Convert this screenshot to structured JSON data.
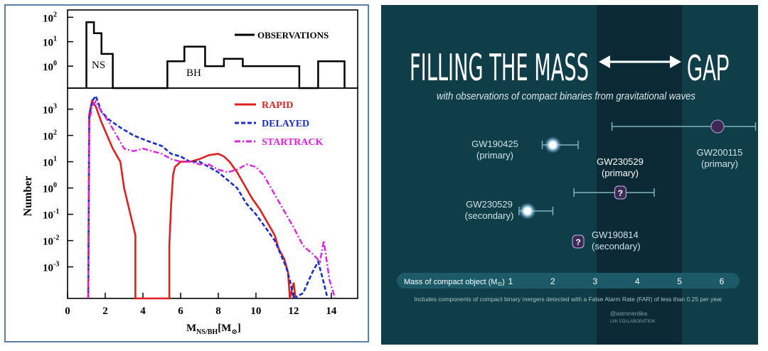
{
  "left": {
    "top_plot": {
      "legend_label": "OBSERVATIONS",
      "label_ns": "NS",
      "label_bh": "BH",
      "y_ticks": [
        {
          "base": "10",
          "exp": "2",
          "v": 2
        },
        {
          "base": "10",
          "exp": "1",
          "v": 1
        },
        {
          "base": "10",
          "exp": "0",
          "v": 0
        }
      ]
    },
    "main_plot": {
      "ylabel": "Number",
      "xlabel_main": "M",
      "xlabel_sub": "NS/BH",
      "xlabel_unit_open": "[M",
      "xlabel_unit_sym": "⊙",
      "xlabel_unit_close": "]",
      "x_ticks": [
        "0",
        "2",
        "4",
        "6",
        "8",
        "10",
        "12",
        "14"
      ],
      "y_ticks": [
        {
          "base": "10",
          "exp": "3",
          "v": 3
        },
        {
          "base": "10",
          "exp": "2",
          "v": 2
        },
        {
          "base": "10",
          "exp": "1",
          "v": 1
        },
        {
          "base": "10",
          "exp": "0",
          "v": 0
        },
        {
          "base": "10",
          "exp": "-1",
          "v": -1
        },
        {
          "base": "10",
          "exp": "-2",
          "v": -2
        },
        {
          "base": "10",
          "exp": "-3",
          "v": -3
        }
      ]
    }
  },
  "right": {
    "title_left": "FILLING THE MASS",
    "title_right": "GAP",
    "subtitle": "with observations of compact binaries from gravitational waves",
    "axis_label": "Mass of compact object (M",
    "axis_label_sym": "⊙",
    "axis_label_end": ")",
    "axis_ticks": [
      "1",
      "2",
      "3",
      "4",
      "5",
      "6"
    ],
    "footnote": "Includes components of compact binary mergers detected with a False Alarm Rate (FAR) of less than 0.25 per year",
    "credit_1": "@astronerdika",
    "credit_2": "LVK COLLABORATION",
    "events": [
      {
        "name": "GW190425",
        "role": "(primary)"
      },
      {
        "name": "GW230529",
        "role": "(primary)"
      },
      {
        "name": "GW200115",
        "role": "(primary)"
      },
      {
        "name": "GW230529",
        "role": "(secondary)"
      },
      {
        "name": "GW190814",
        "role": "(secondary)"
      }
    ],
    "question_mark": "?"
  },
  "chart_data": [
    {
      "type": "line",
      "title": "",
      "xlabel": "",
      "ylabel": "",
      "x_range": [
        0,
        15.4
      ],
      "log_y": true,
      "ylim_log10": [
        -0.9,
        2.3
      ],
      "series": [
        {
          "name": "OBSERVATIONS",
          "color": "#000000",
          "steps": [
            [
              1.0,
              -0.9
            ],
            [
              1.0,
              1.8
            ],
            [
              1.4,
              1.8
            ],
            [
              1.4,
              1.35
            ],
            [
              1.8,
              1.35
            ],
            [
              1.8,
              0.5
            ],
            [
              2.4,
              0.5
            ],
            [
              2.4,
              -0.9
            ],
            [
              5.3,
              -0.9
            ],
            [
              5.3,
              0.2
            ],
            [
              6.2,
              0.2
            ],
            [
              6.2,
              0.8
            ],
            [
              7.3,
              0.8
            ],
            [
              7.3,
              0.0
            ],
            [
              8.3,
              0.0
            ],
            [
              8.3,
              0.3
            ],
            [
              9.3,
              0.3
            ],
            [
              9.3,
              0.0
            ],
            [
              12.3,
              0.0
            ],
            [
              12.3,
              -0.9
            ],
            [
              13.3,
              -0.9
            ],
            [
              13.3,
              0.2
            ],
            [
              14.7,
              0.2
            ],
            [
              14.7,
              -0.9
            ]
          ]
        }
      ]
    },
    {
      "type": "line",
      "title": "",
      "xlabel": "M_NS/BH [M⊙]",
      "ylabel": "Number",
      "x_range": [
        0,
        15.4
      ],
      "log_y": true,
      "ylim_log10": [
        -4.2,
        3.8
      ],
      "series": [
        {
          "name": "RAPID",
          "color": "#e02020",
          "style": "solid",
          "points": [
            [
              1.1,
              -4.2
            ],
            [
              1.15,
              2.8
            ],
            [
              1.3,
              3.3
            ],
            [
              1.5,
              3.1
            ],
            [
              1.8,
              2.5
            ],
            [
              2.1,
              2.0
            ],
            [
              2.4,
              1.5
            ],
            [
              2.8,
              1.0
            ],
            [
              3.0,
              0.0
            ],
            [
              3.2,
              -0.6
            ],
            [
              3.4,
              -1.2
            ],
            [
              3.6,
              -1.8
            ],
            [
              3.6,
              -4.2
            ],
            [
              5.4,
              -4.2
            ],
            [
              5.4,
              -2.2
            ],
            [
              5.5,
              -0.6
            ],
            [
              5.6,
              0.5
            ],
            [
              5.7,
              0.8
            ],
            [
              6.0,
              1.0
            ],
            [
              6.5,
              1.0
            ],
            [
              7.0,
              1.1
            ],
            [
              7.5,
              1.25
            ],
            [
              8.0,
              1.3
            ],
            [
              8.3,
              1.2
            ],
            [
              8.6,
              1.0
            ],
            [
              9.0,
              0.6
            ],
            [
              9.4,
              0.1
            ],
            [
              9.8,
              -0.4
            ],
            [
              10.2,
              -0.8
            ],
            [
              10.6,
              -1.3
            ],
            [
              11.0,
              -1.8
            ],
            [
              11.2,
              -2.3
            ],
            [
              11.5,
              -2.7
            ],
            [
              11.7,
              -3.2
            ],
            [
              11.8,
              -4.2
            ],
            [
              12.0,
              -3.6
            ],
            [
              12.1,
              -4.2
            ]
          ]
        },
        {
          "name": "DELAYED",
          "color": "#1a2fc8",
          "style": "dashed",
          "points": [
            [
              1.1,
              -4.2
            ],
            [
              1.15,
              2.7
            ],
            [
              1.3,
              3.3
            ],
            [
              1.5,
              3.5
            ],
            [
              1.8,
              2.9
            ],
            [
              2.2,
              2.6
            ],
            [
              2.8,
              2.3
            ],
            [
              3.5,
              2.0
            ],
            [
              4.2,
              1.8
            ],
            [
              5.0,
              1.6
            ],
            [
              5.5,
              1.3
            ],
            [
              6.0,
              1.2
            ],
            [
              6.5,
              1.0
            ],
            [
              7.0,
              1.0
            ],
            [
              7.5,
              0.8
            ],
            [
              8.0,
              0.6
            ],
            [
              8.5,
              0.3
            ],
            [
              9.0,
              0.0
            ],
            [
              9.5,
              -0.6
            ],
            [
              10.0,
              -1.0
            ],
            [
              10.5,
              -1.5
            ],
            [
              11.0,
              -2.0
            ],
            [
              11.3,
              -2.5
            ],
            [
              11.6,
              -3.0
            ],
            [
              11.8,
              -3.5
            ],
            [
              12.0,
              -4.2
            ],
            [
              12.5,
              -4.0
            ],
            [
              13.0,
              -3.2
            ],
            [
              13.3,
              -2.8
            ],
            [
              13.6,
              -3.6
            ],
            [
              13.8,
              -4.2
            ]
          ]
        },
        {
          "name": "STARTRACK",
          "color": "#e020e0",
          "style": "dashdot",
          "points": [
            [
              1.1,
              -4.2
            ],
            [
              1.15,
              2.5
            ],
            [
              1.3,
              3.1
            ],
            [
              1.5,
              3.3
            ],
            [
              1.8,
              2.9
            ],
            [
              2.2,
              2.5
            ],
            [
              2.6,
              2.0
            ],
            [
              3.0,
              1.5
            ],
            [
              3.5,
              1.4
            ],
            [
              4.0,
              1.5
            ],
            [
              4.5,
              1.4
            ],
            [
              5.0,
              1.3
            ],
            [
              5.5,
              1.1
            ],
            [
              6.0,
              1.0
            ],
            [
              6.5,
              1.0
            ],
            [
              7.0,
              0.9
            ],
            [
              7.5,
              0.9
            ],
            [
              8.0,
              0.7
            ],
            [
              8.5,
              0.6
            ],
            [
              9.0,
              0.7
            ],
            [
              9.5,
              0.9
            ],
            [
              10.0,
              0.8
            ],
            [
              10.4,
              0.5
            ],
            [
              10.8,
              0.0
            ],
            [
              11.2,
              -0.5
            ],
            [
              11.6,
              -1.0
            ],
            [
              12.0,
              -1.5
            ],
            [
              12.5,
              -2.2
            ],
            [
              13.0,
              -2.5
            ],
            [
              13.4,
              -2.8
            ],
            [
              13.6,
              -2.0
            ],
            [
              13.9,
              -3.5
            ],
            [
              14.2,
              -4.2
            ]
          ]
        }
      ]
    },
    {
      "type": "scatter",
      "title": "FILLING THE MASS ↔ GAP",
      "xlabel": "Mass of compact object (M⊙)",
      "x_ticks": [
        1,
        2,
        3,
        4,
        5,
        6
      ],
      "mass_gap_range": [
        3,
        5
      ],
      "series": [
        {
          "name": "GW190425 (primary)",
          "x": 2.0,
          "err": [
            1.75,
            2.6
          ]
        },
        {
          "name": "GW230529 (primary)",
          "x": 3.6,
          "err": [
            2.5,
            4.4
          ]
        },
        {
          "name": "GW200115 (primary)",
          "x": 5.9,
          "err": [
            3.4,
            6.8
          ]
        },
        {
          "name": "GW230529 (secondary)",
          "x": 1.4,
          "err": [
            1.2,
            2.0
          ]
        },
        {
          "name": "GW190814 (secondary)",
          "x": 2.6,
          "err": [
            2.55,
            2.65
          ]
        }
      ]
    }
  ]
}
